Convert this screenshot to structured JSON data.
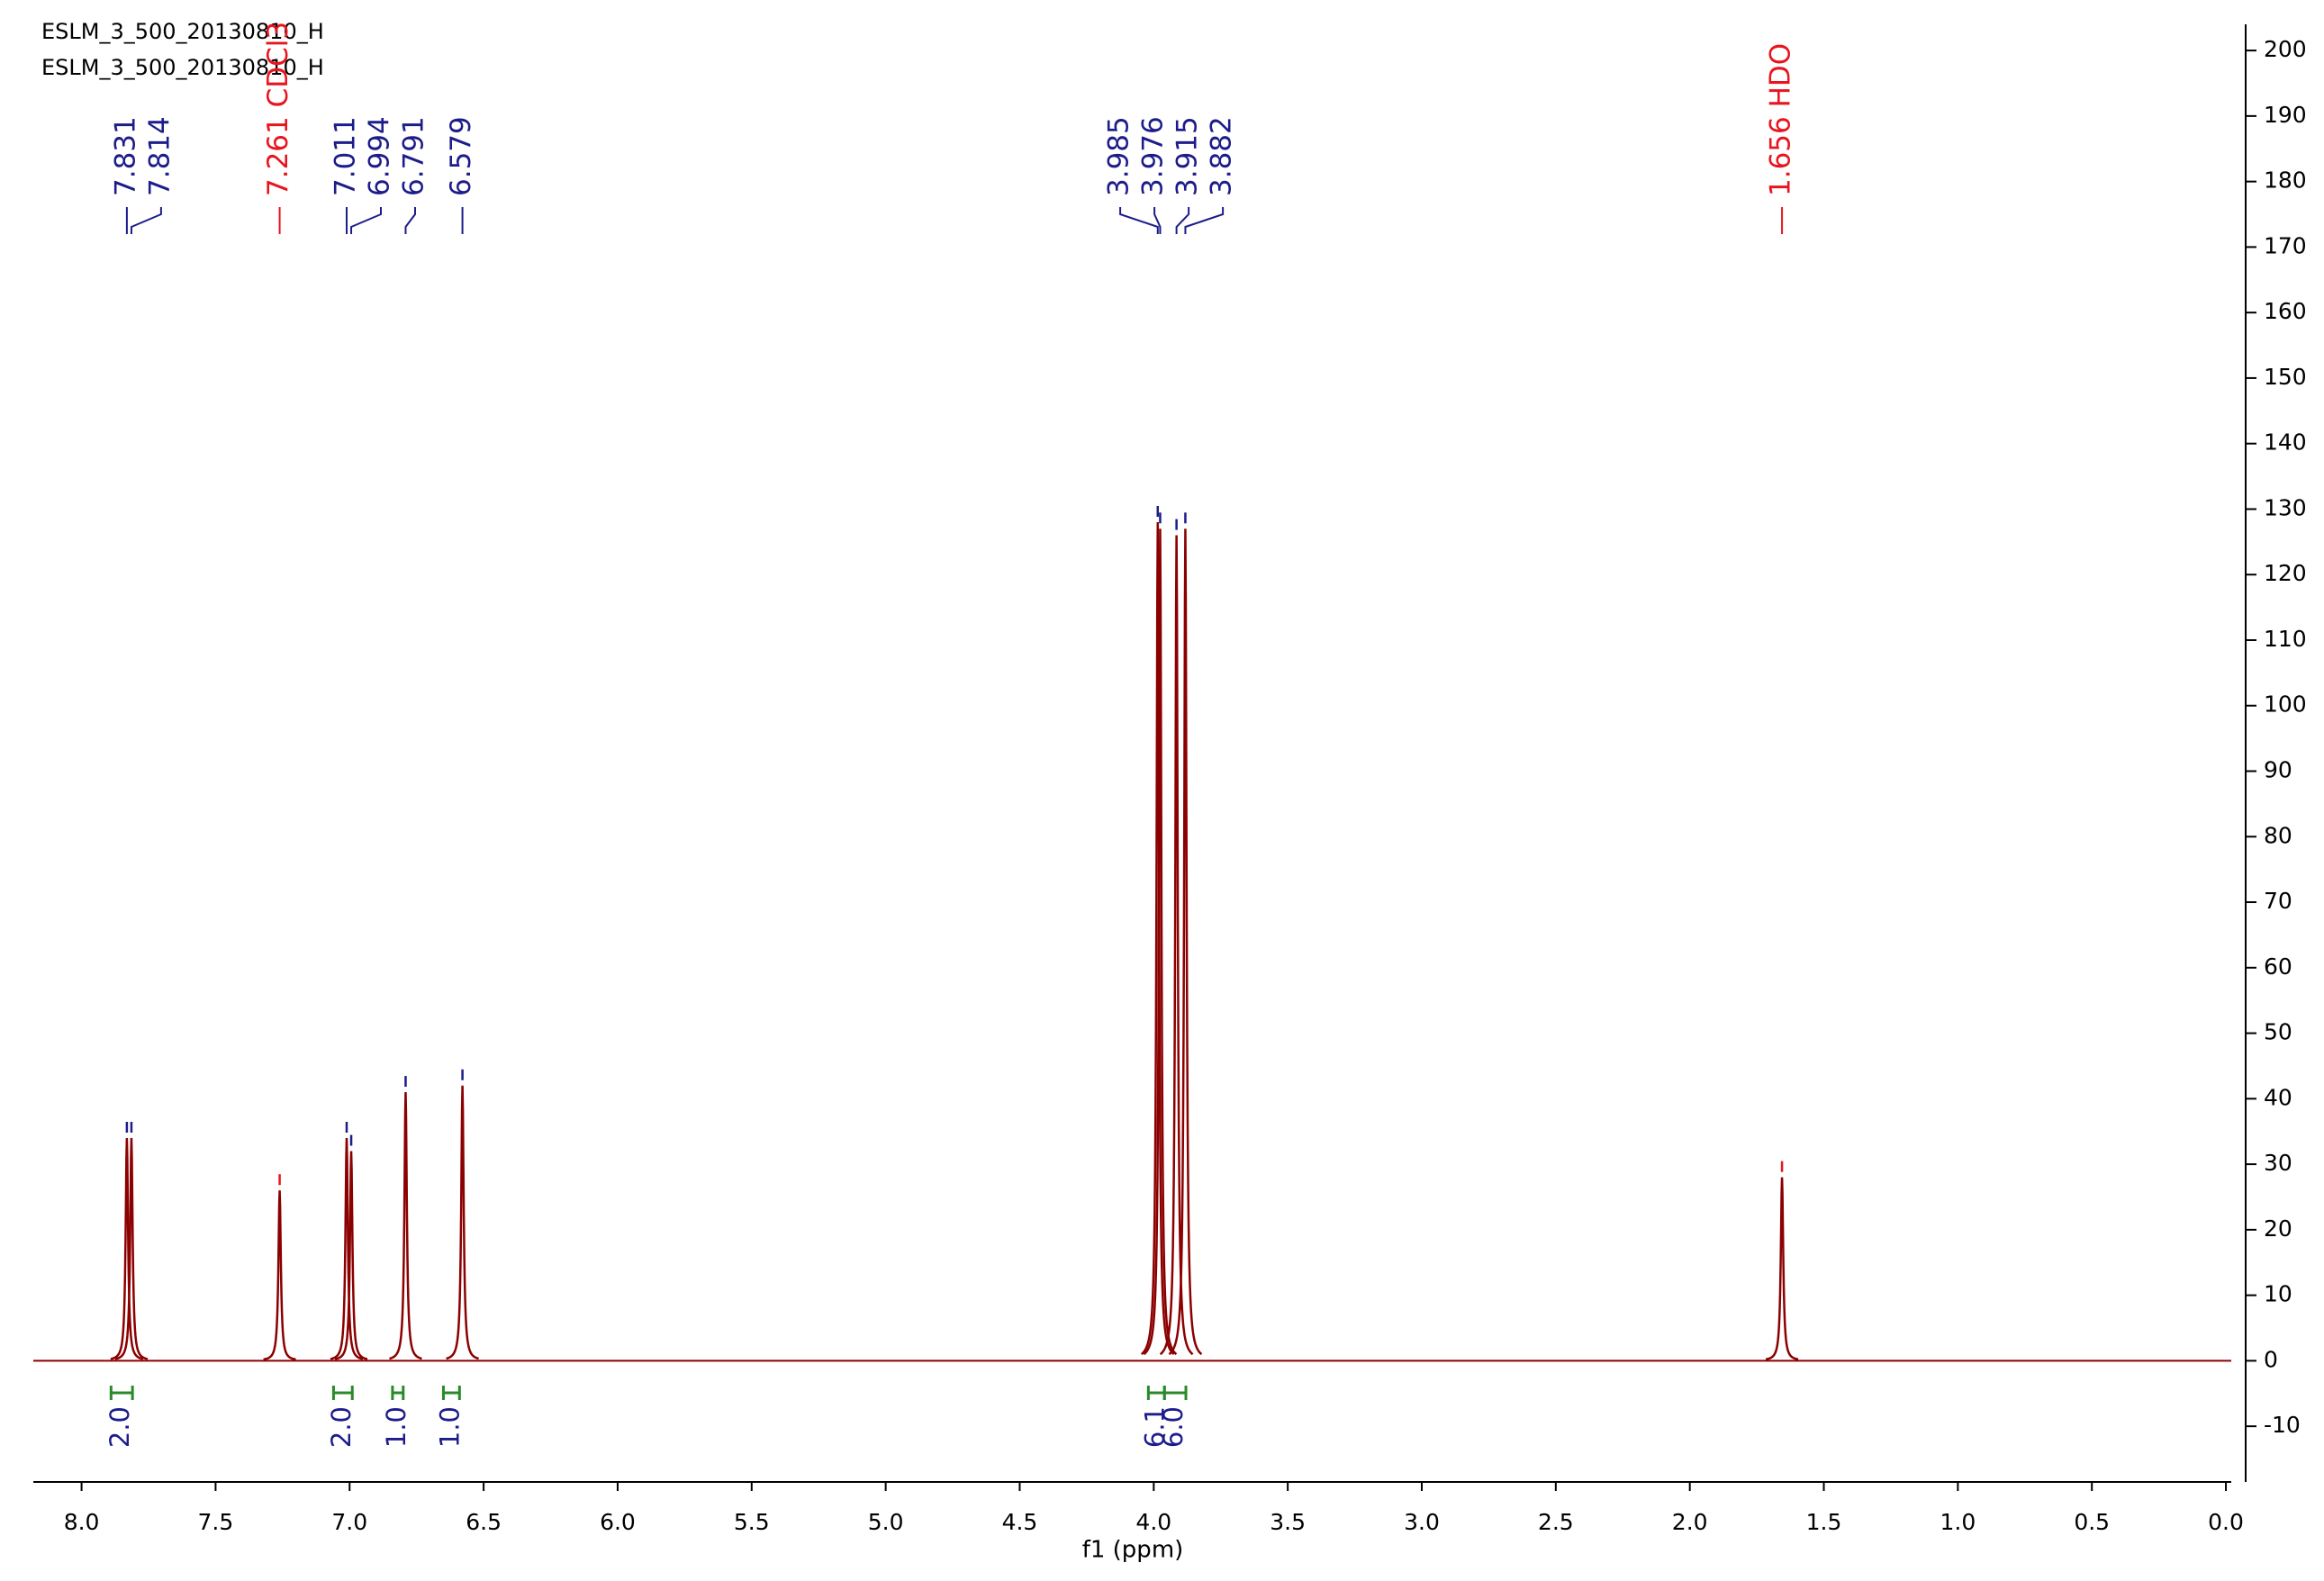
{
  "chart_data": {
    "type": "nmr",
    "title": "ESLM_3_500_20130810_H",
    "subtitle": "ESLM_3_500_20130810_H",
    "xlabel": "f1 (ppm)",
    "xlim": [
      8.18,
      -0.02
    ],
    "ylim": [
      -18.5,
      204
    ],
    "xticks": [
      {
        "value": 8,
        "label": "8.0"
      },
      7.5,
      {
        "value": 7,
        "label": "7.0"
      },
      6.5,
      {
        "value": 6,
        "label": "6.0"
      },
      5.5,
      {
        "value": 5,
        "label": "5.0"
      },
      4.5,
      {
        "value": 4,
        "label": "4.0"
      },
      3.5,
      {
        "value": 3,
        "label": "3.0"
      },
      2.5,
      {
        "value": 2,
        "label": "2.0"
      },
      1.5,
      {
        "value": 1,
        "label": "1.0"
      },
      0.5,
      {
        "value": 0,
        "label": "0.0"
      }
    ],
    "yticks": [
      -10,
      0,
      10,
      20,
      30,
      40,
      50,
      60,
      70,
      80,
      90,
      100,
      110,
      120,
      130,
      140,
      150,
      160,
      170,
      180,
      190,
      200
    ],
    "color": "#8b0000",
    "peaks": {
      "x": [
        7.831,
        7.814,
        7.261,
        7.011,
        6.994,
        6.791,
        6.579,
        3.985,
        3.976,
        3.915,
        3.882,
        1.656
      ],
      "values": [
        34,
        34,
        26,
        34,
        32,
        41,
        42,
        128,
        127,
        126,
        127,
        28
      ],
      "labels": [
        "7.831",
        "7.814",
        "7.261 CDCl3",
        "7.011",
        "6.994",
        "6.791",
        "6.579",
        "3.985",
        "3.976",
        "3.915",
        "3.882",
        "1.656 HDO"
      ],
      "label_colors": [
        "#1c1c8a",
        "#1c1c8a",
        "#e8141e",
        "#1c1c8a",
        "#1c1c8a",
        "#1c1c8a",
        "#1c1c8a",
        "#1c1c8a",
        "#1c1c8a",
        "#1c1c8a",
        "#1c1c8a",
        "#e8141e"
      ]
    },
    "integrals": {
      "ranges": [
        [
          7.89,
          7.81
        ],
        [
          7.06,
          6.99
        ],
        [
          6.84,
          6.8
        ],
        [
          6.65,
          6.59
        ],
        [
          4.02,
          3.96
        ],
        [
          3.96,
          3.88
        ]
      ],
      "values": [
        2.0,
        2.0,
        1.0,
        1.0,
        6.1,
        6.0
      ],
      "value_labels": [
        "2.0",
        "2.0",
        "1.0",
        "1.0",
        "6.1",
        "6.0"
      ],
      "color": "#2a8a2a",
      "label_color": "#1c1c8a"
    }
  }
}
